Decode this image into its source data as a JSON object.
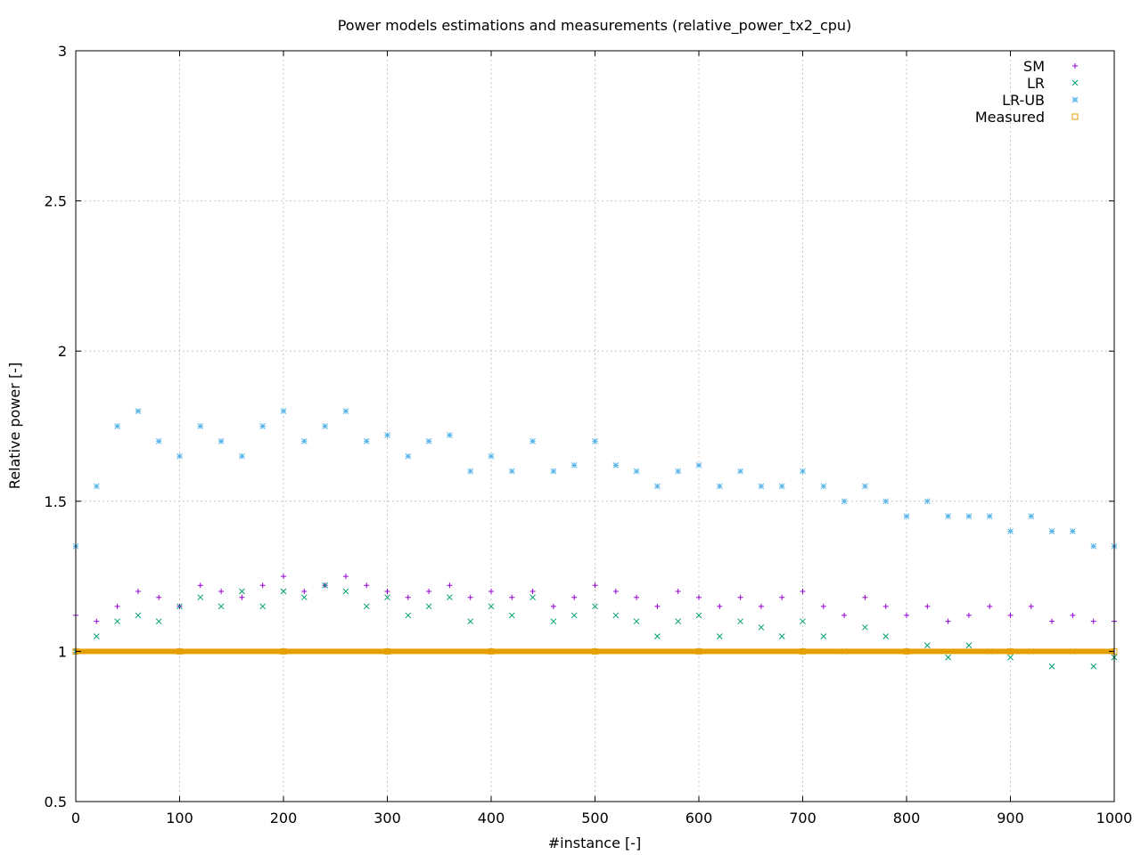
{
  "chart_data": {
    "type": "scatter",
    "title": "Power models estimations and measurements (relative_power_tx2_cpu)",
    "xlabel": "#instance [-]",
    "ylabel": "Relative power [-]",
    "xlim": [
      0,
      1000
    ],
    "ylim": [
      0.5,
      3
    ],
    "x_ticks": [
      "0",
      "100",
      "200",
      "300",
      "400",
      "500",
      "600",
      "700",
      "800",
      "900",
      "1000"
    ],
    "y_ticks": [
      "0.5",
      "1",
      "1.5",
      "2",
      "2.5",
      "3"
    ],
    "grid": true,
    "legend_position": "top-right",
    "series": [
      {
        "name": "SM",
        "marker": "plus",
        "color": "#9400d3",
        "x": [
          0,
          20,
          40,
          60,
          80,
          100,
          120,
          140,
          160,
          180,
          200,
          220,
          240,
          260,
          280,
          300,
          320,
          340,
          360,
          380,
          400,
          420,
          440,
          460,
          480,
          500,
          520,
          540,
          560,
          580,
          600,
          620,
          640,
          660,
          680,
          700,
          720,
          740,
          760,
          780,
          800,
          820,
          840,
          860,
          880,
          900,
          920,
          940,
          960,
          980,
          1000
        ],
        "y": [
          1.12,
          1.1,
          1.15,
          1.2,
          1.18,
          1.15,
          1.22,
          1.2,
          1.18,
          1.22,
          1.25,
          1.2,
          1.22,
          1.25,
          1.22,
          1.2,
          1.18,
          1.2,
          1.22,
          1.18,
          1.2,
          1.18,
          1.2,
          1.15,
          1.18,
          1.22,
          1.2,
          1.18,
          1.15,
          1.2,
          1.18,
          1.15,
          1.18,
          1.15,
          1.18,
          1.2,
          1.15,
          1.12,
          1.18,
          1.15,
          1.12,
          1.15,
          1.1,
          1.12,
          1.15,
          1.12,
          1.15,
          1.1,
          1.12,
          1.1,
          1.1
        ]
      },
      {
        "name": "LR",
        "marker": "cross",
        "color": "#009e73",
        "x": [
          0,
          20,
          40,
          60,
          80,
          100,
          120,
          140,
          160,
          180,
          200,
          220,
          240,
          260,
          280,
          300,
          320,
          340,
          360,
          380,
          400,
          420,
          440,
          460,
          480,
          500,
          520,
          540,
          560,
          580,
          600,
          620,
          640,
          660,
          680,
          700,
          720,
          740,
          760,
          780,
          800,
          820,
          840,
          860,
          880,
          900,
          920,
          940,
          960,
          980,
          1000
        ],
        "y": [
          1.0,
          1.05,
          1.1,
          1.12,
          1.1,
          1.15,
          1.18,
          1.15,
          1.2,
          1.15,
          1.2,
          1.18,
          1.22,
          1.2,
          1.15,
          1.18,
          1.12,
          1.15,
          1.18,
          1.1,
          1.15,
          1.12,
          1.18,
          1.1,
          1.12,
          1.15,
          1.12,
          1.1,
          1.05,
          1.1,
          1.12,
          1.05,
          1.1,
          1.08,
          1.05,
          1.1,
          1.05,
          1.0,
          1.08,
          1.05,
          1.0,
          1.02,
          0.98,
          1.02,
          1.0,
          0.98,
          1.0,
          0.95,
          1.0,
          0.95,
          0.98
        ]
      },
      {
        "name": "LR-UB",
        "marker": "star",
        "color": "#56b4e9",
        "x": [
          0,
          20,
          40,
          60,
          80,
          100,
          120,
          140,
          160,
          180,
          200,
          220,
          240,
          260,
          280,
          300,
          320,
          340,
          360,
          380,
          400,
          420,
          440,
          460,
          480,
          500,
          520,
          540,
          560,
          580,
          600,
          620,
          640,
          660,
          680,
          700,
          720,
          740,
          760,
          780,
          800,
          820,
          840,
          860,
          880,
          900,
          920,
          940,
          960,
          980,
          1000
        ],
        "y": [
          1.35,
          1.55,
          1.75,
          1.8,
          1.7,
          1.65,
          1.75,
          1.7,
          1.65,
          1.75,
          1.8,
          1.7,
          1.75,
          1.8,
          1.7,
          1.72,
          1.65,
          1.7,
          1.72,
          1.6,
          1.65,
          1.6,
          1.7,
          1.6,
          1.62,
          1.7,
          1.62,
          1.6,
          1.55,
          1.6,
          1.62,
          1.55,
          1.6,
          1.55,
          1.55,
          1.6,
          1.55,
          1.5,
          1.55,
          1.5,
          1.45,
          1.5,
          1.45,
          1.45,
          1.45,
          1.4,
          1.45,
          1.4,
          1.4,
          1.35,
          1.35
        ]
      },
      {
        "name": "Measured",
        "marker": "square",
        "color": "#e69f00",
        "x": [
          0,
          100,
          200,
          300,
          400,
          500,
          600,
          700,
          800,
          900,
          1000
        ],
        "y": [
          1,
          1,
          1,
          1,
          1,
          1,
          1,
          1,
          1,
          1,
          1
        ]
      }
    ]
  },
  "colors": {
    "border": "#000000",
    "grid": "#c8c8c8",
    "background": "#ffffff"
  }
}
